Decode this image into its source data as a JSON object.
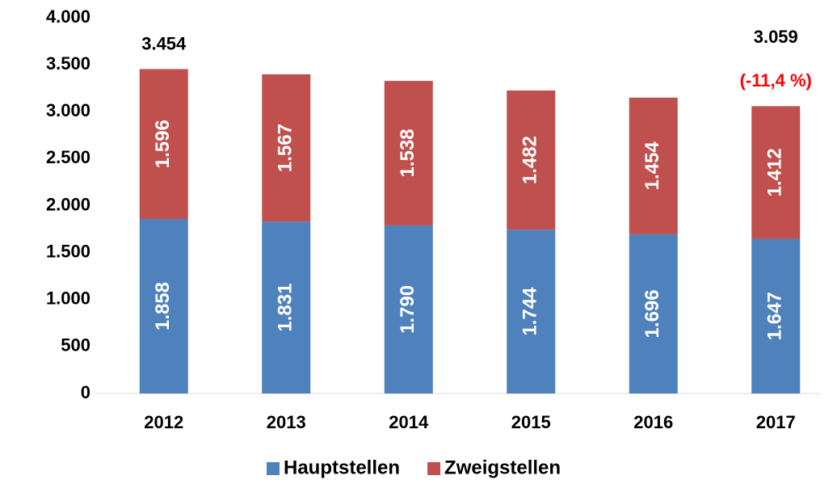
{
  "chart_data": {
    "type": "stacked_bar",
    "categories": [
      "2012",
      "2013",
      "2014",
      "2015",
      "2016",
      "2017"
    ],
    "series": [
      {
        "name": "Hauptstellen",
        "color": "#4f81bd",
        "values": [
          1858,
          1831,
          1790,
          1744,
          1696,
          1647
        ],
        "value_labels": [
          "1.858",
          "1.831",
          "1.790",
          "1.744",
          "1.696",
          "1.647"
        ]
      },
      {
        "name": "Zweigstellen",
        "color": "#c0504d",
        "values": [
          1596,
          1567,
          1538,
          1482,
          1454,
          1412
        ],
        "value_labels": [
          "1.596",
          "1.567",
          "1.538",
          "1.482",
          "1.454",
          "1.412"
        ]
      }
    ],
    "ylim": [
      0,
      4000
    ],
    "yticks": [
      0,
      500,
      {
        "value": 1000,
        "label": "1.000"
      },
      {
        "value": 1500,
        "label": "1.500"
      },
      {
        "value": 2000,
        "label": "2.000"
      },
      {
        "value": 2500,
        "label": "2.500"
      },
      {
        "value": 3000,
        "label": "3.000"
      },
      {
        "value": 3500,
        "label": "3.500"
      },
      {
        "value": 4000,
        "label": "4.000"
      }
    ],
    "grid": false,
    "legend": "bottom",
    "annotations": [
      {
        "x": "2012",
        "value": 3454,
        "label": "3.454",
        "color": "#000000"
      },
      {
        "x": "2017",
        "value": 3059,
        "label": "3.059",
        "color": "#000000"
      },
      {
        "x": "2017",
        "label": "(-11,4 %)",
        "color": "#ff0000"
      }
    ]
  }
}
